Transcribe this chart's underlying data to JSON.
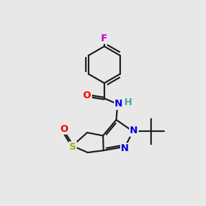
{
  "background_color": "#e8e8e8",
  "bond_color": "#1a1a1a",
  "bond_width": 1.6,
  "fig_size": [
    3.0,
    3.0
  ],
  "dpi": 100,
  "atoms": {
    "F": {
      "color": "#cc00cc",
      "fontsize": 10
    },
    "O_ketone": {
      "color": "#ff0000",
      "fontsize": 10
    },
    "N_amide": {
      "color": "#0000dd",
      "fontsize": 10
    },
    "H_amide": {
      "color": "#44aaaa",
      "fontsize": 10
    },
    "N2": {
      "color": "#0000dd",
      "fontsize": 10
    },
    "N1": {
      "color": "#0000dd",
      "fontsize": 10
    },
    "S": {
      "color": "#aaaa00",
      "fontsize": 10
    },
    "O_sulfox": {
      "color": "#ff0000",
      "fontsize": 10
    }
  },
  "xlim": [
    1.0,
    8.0
  ],
  "ylim": [
    1.5,
    9.5
  ]
}
